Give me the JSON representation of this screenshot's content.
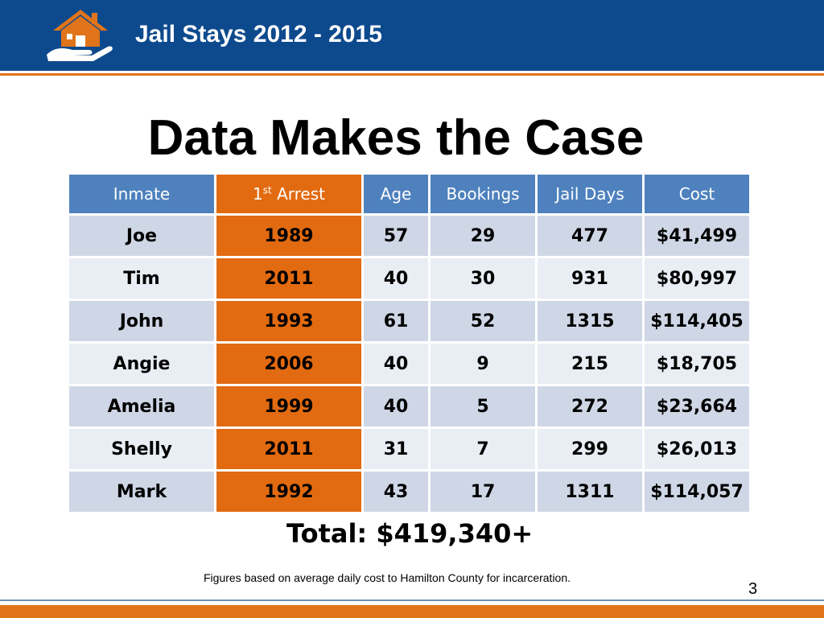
{
  "header": {
    "title": "Jail Stays 2012 - 2015",
    "accent_color": "#e0741a",
    "bar_color": "#0d4a8d",
    "logo_icon": "house-in-hand-icon"
  },
  "main_title": "Data Makes the Case",
  "table": {
    "columns": {
      "inmate": "Inmate",
      "first_arrest_num": "1",
      "first_arrest_sup": "st",
      "first_arrest_rest": " Arrest",
      "age": "Age",
      "bookings": "Bookings",
      "jail_days": "Jail Days",
      "cost": "Cost"
    },
    "rows": [
      {
        "inmate": "Joe",
        "first_arrest": "1989",
        "age": "57",
        "bookings": "29",
        "jail_days": "477",
        "cost": "$41,499"
      },
      {
        "inmate": "Tim",
        "first_arrest": "2011",
        "age": "40",
        "bookings": "30",
        "jail_days": "931",
        "cost": "$80,997"
      },
      {
        "inmate": "John",
        "first_arrest": "1993",
        "age": "61",
        "bookings": "52",
        "jail_days": "1315",
        "cost": "$114,405"
      },
      {
        "inmate": "Angie",
        "first_arrest": "2006",
        "age": "40",
        "bookings": "9",
        "jail_days": "215",
        "cost": "$18,705"
      },
      {
        "inmate": "Amelia",
        "first_arrest": "1999",
        "age": "40",
        "bookings": "5",
        "jail_days": "272",
        "cost": "$23,664"
      },
      {
        "inmate": "Shelly",
        "first_arrest": "2011",
        "age": "31",
        "bookings": "7",
        "jail_days": "299",
        "cost": "$26,013"
      },
      {
        "inmate": "Mark",
        "first_arrest": "1992",
        "age": "43",
        "bookings": "17",
        "jail_days": "1311",
        "cost": "$114,057"
      }
    ],
    "highlight_color": "#e26a10",
    "header_color": "#4e81bd"
  },
  "total": "Total: $419,340+",
  "footnote": "Figures based on average daily cost  to Hamilton County for incarceration.",
  "page_number": "3"
}
